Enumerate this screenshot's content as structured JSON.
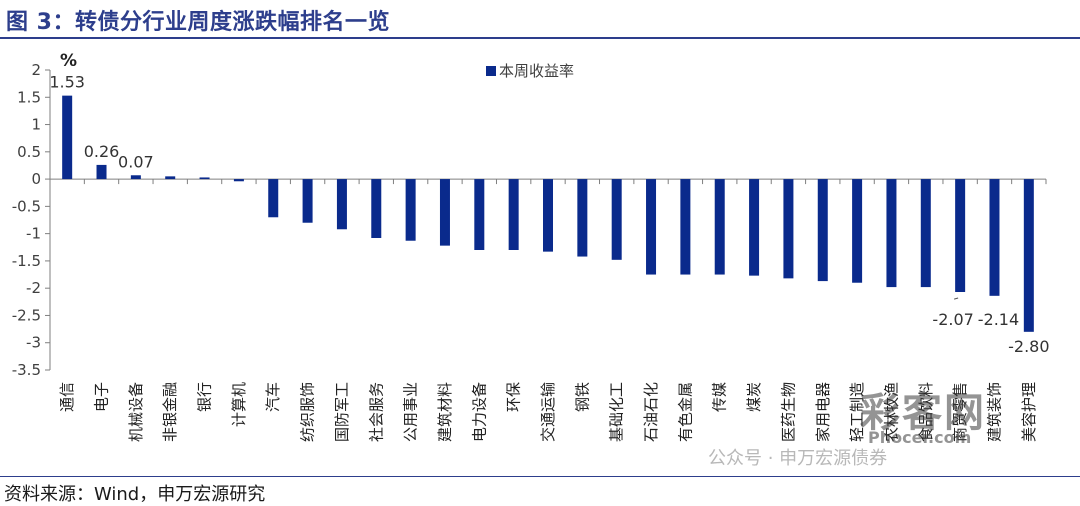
{
  "figure_title": "图 3：转债分行业周度涨跌幅排名一览",
  "source_note": "资料来源：Wind，申万宏源研究",
  "watermark_text": "公众号 · 申万宏源债券",
  "watermark_logo": "彩客网",
  "watermark_logo_sub": "Phocer.com",
  "colors": {
    "bar": "#0a2a8c",
    "title": "#2d3e8c",
    "axis": "#7f7f7f",
    "text": "#404040"
  },
  "chart_data": {
    "type": "bar",
    "yunit": "%",
    "ylim": [
      -3.5,
      2
    ],
    "yticks": [
      "2",
      "1.5",
      "1",
      "0.5",
      "0",
      "-0.5",
      "-1",
      "-1.5",
      "-2",
      "-2.5",
      "-3",
      "-3.5"
    ],
    "legend": "本周收益率",
    "legend_position": "top-center",
    "grid": false,
    "categories": [
      "通信",
      "电子",
      "机械设备",
      "非银金融",
      "银行",
      "计算机",
      "汽车",
      "纺织服饰",
      "国防军工",
      "社会服务",
      "公用事业",
      "建筑材料",
      "电力设备",
      "环保",
      "交通运输",
      "钢铁",
      "基础化工",
      "石油石化",
      "有色金属",
      "传媒",
      "煤炭",
      "医药生物",
      "家用电器",
      "轻工制造",
      "农林牧渔",
      "食品饮料",
      "商贸零售",
      "建筑装饰",
      "美容护理"
    ],
    "series": [
      {
        "values": [
          1.53,
          0.26,
          0.07,
          0.05,
          0.03,
          -0.04,
          -0.7,
          -0.8,
          -0.92,
          -1.08,
          -1.13,
          -1.22,
          -1.3,
          -1.3,
          -1.33,
          -1.42,
          -1.48,
          -1.75,
          -1.75,
          -1.75,
          -1.77,
          -1.82,
          -1.87,
          -1.9,
          -1.98,
          -1.98,
          -2.07,
          -2.14,
          -2.8
        ]
      }
    ],
    "data_labels": [
      {
        "index": 0,
        "text": "1.53"
      },
      {
        "index": 1,
        "text": "0.26"
      },
      {
        "index": 2,
        "text": "0.07"
      },
      {
        "index": 26,
        "text": "-2.07"
      },
      {
        "index": 27,
        "text": "-2.14"
      },
      {
        "index": 28,
        "text": "-2.80"
      }
    ]
  }
}
